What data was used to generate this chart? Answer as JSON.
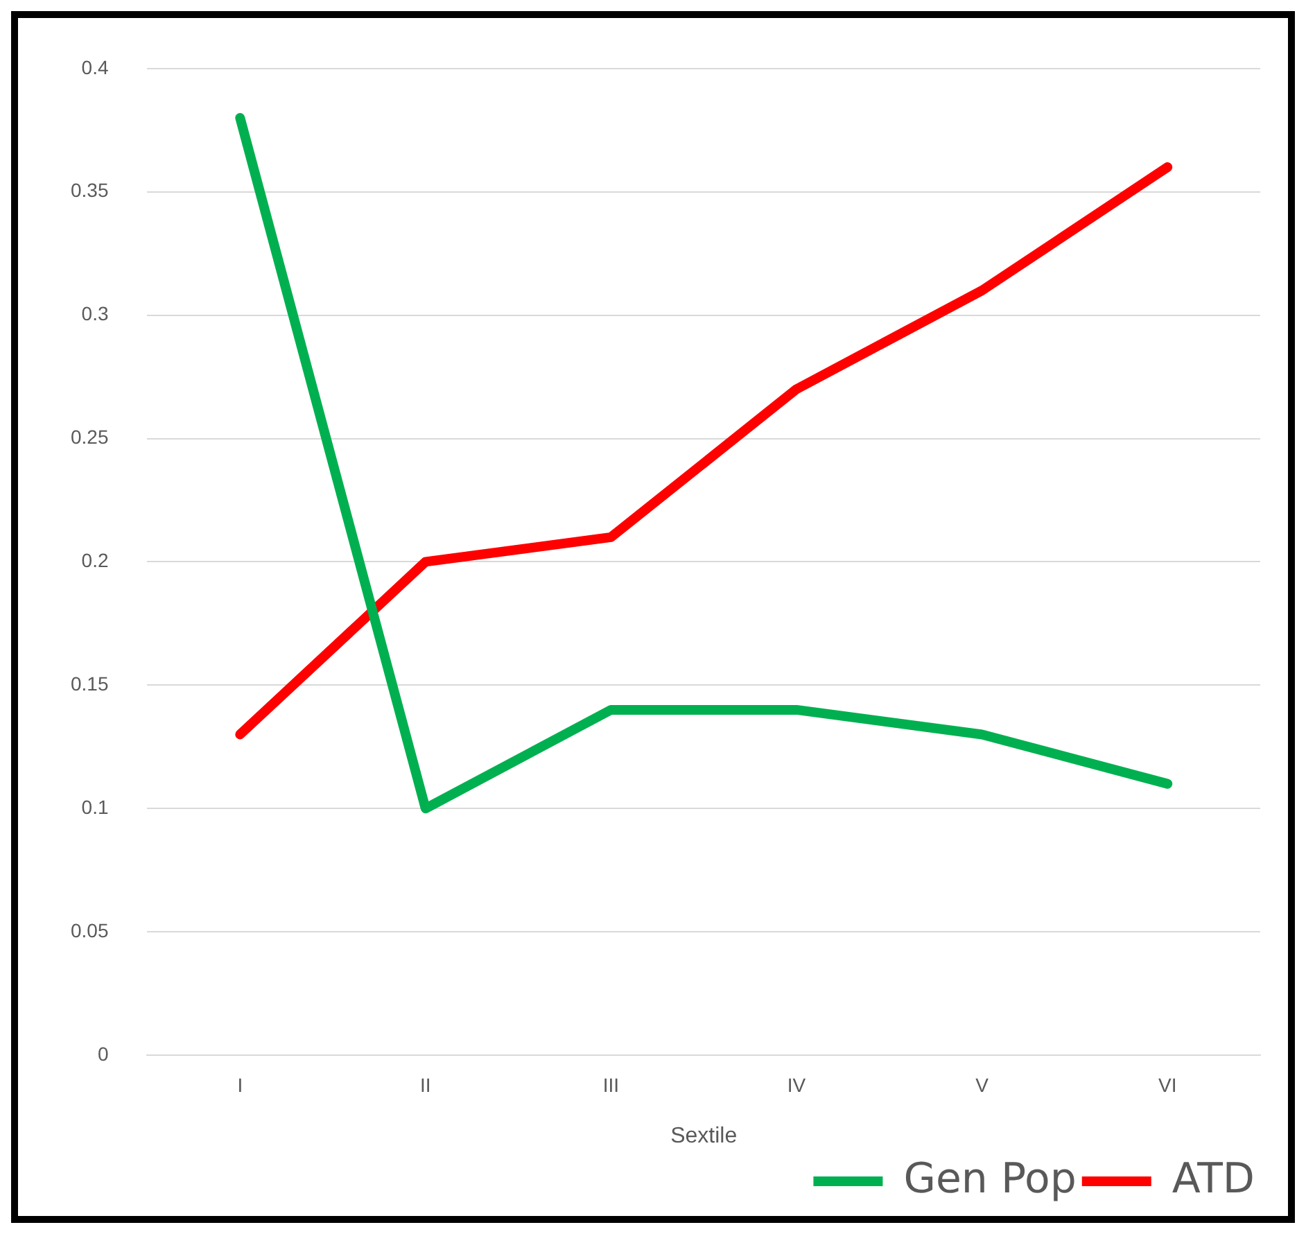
{
  "chart_data": {
    "type": "line",
    "xlabel": "Sextile",
    "categories": [
      "I",
      "II",
      "III",
      "IV",
      "V",
      "VI"
    ],
    "series": [
      {
        "name": "Gen Pop",
        "color": "#00b050",
        "values": [
          0.38,
          0.1,
          0.14,
          0.14,
          0.13,
          0.11
        ]
      },
      {
        "name": "ATD",
        "color": "#ff0000",
        "values": [
          0.13,
          0.2,
          0.21,
          0.27,
          0.31,
          0.36
        ]
      }
    ],
    "ylim": [
      0,
      0.4
    ],
    "yticks": [
      0,
      0.05,
      0.1,
      0.15,
      0.2,
      0.25,
      0.3,
      0.35,
      0.4
    ],
    "grid": "y",
    "legend": "bottom right",
    "marker": "none",
    "line_style": "solid"
  }
}
